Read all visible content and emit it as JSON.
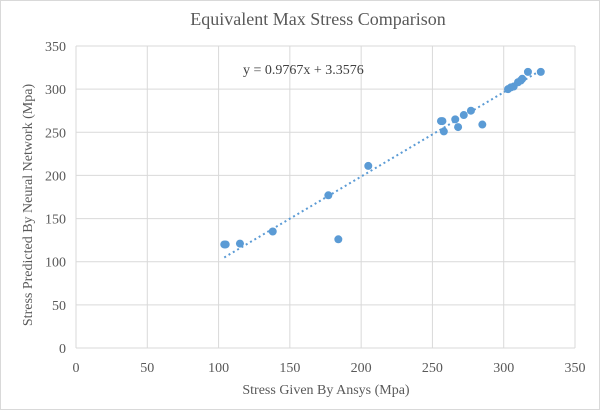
{
  "chart_data": {
    "type": "scatter",
    "title": "Equivalent Max Stress Comparison",
    "xlabel": "Stress Given By Ansys (Mpa)",
    "ylabel": "Stress Predicted By Neural Network (Mpa)",
    "xlim": [
      0,
      350
    ],
    "ylim": [
      0,
      350
    ],
    "xticks": [
      0,
      50,
      100,
      150,
      200,
      250,
      300,
      350
    ],
    "yticks": [
      0,
      50,
      100,
      150,
      200,
      250,
      300,
      350
    ],
    "grid": true,
    "series": [
      {
        "points": [
          [
            104,
            120
          ],
          [
            105,
            120
          ],
          [
            115,
            121
          ],
          [
            138,
            135
          ],
          [
            177,
            177
          ],
          [
            184,
            126
          ],
          [
            205,
            211
          ],
          [
            256,
            263
          ],
          [
            257,
            263
          ],
          [
            258,
            251
          ],
          [
            266,
            265
          ],
          [
            268,
            256
          ],
          [
            272,
            270
          ],
          [
            277,
            275
          ],
          [
            285,
            259
          ],
          [
            303,
            300
          ],
          [
            305,
            302
          ],
          [
            307,
            303
          ],
          [
            310,
            308
          ],
          [
            312,
            310
          ],
          [
            313,
            312
          ],
          [
            317,
            320
          ],
          [
            326,
            320
          ]
        ]
      }
    ],
    "trendline": {
      "type": "linear",
      "slope": 0.9767,
      "intercept": 3.3576,
      "x_range": [
        104,
        326
      ],
      "equation_label": "y = 0.9767x + 3.3576"
    },
    "colors": {
      "points": "#5b9bd5",
      "grid": "#d9d9d9",
      "text": "#595959"
    }
  }
}
